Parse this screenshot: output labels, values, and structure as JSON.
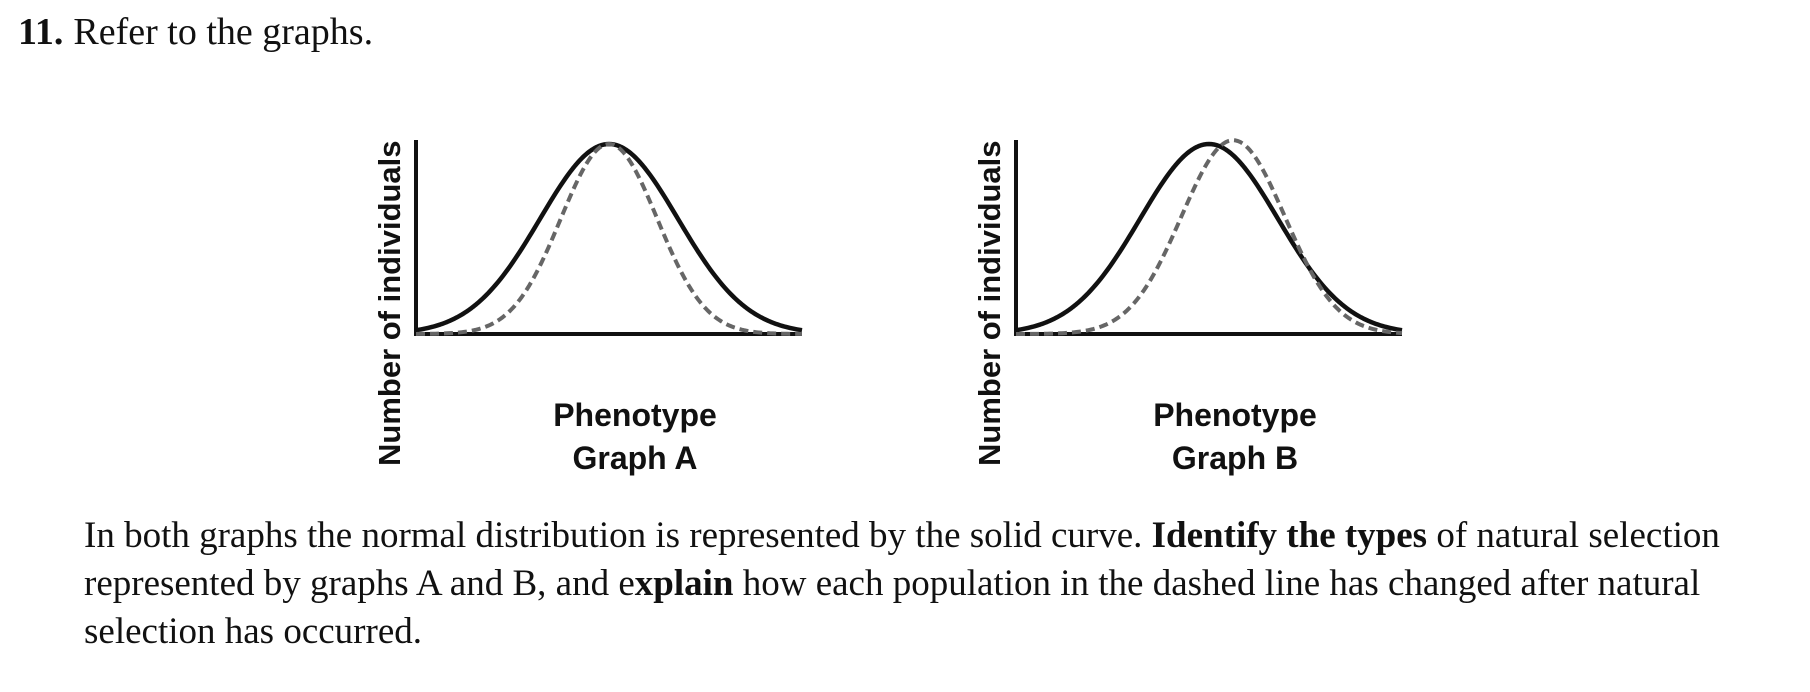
{
  "question": {
    "number": "11.",
    "prompt": "Refer to the graphs.",
    "body_1": "In both graphs the normal distribution is represented by the solid curve. ",
    "body_bold_1": "Identify the types",
    "body_2": " of natural selection represented by graphs A and B, and e",
    "body_bold_2": "xplain",
    "body_3": " how each population in the dashed line has changed after natural selection has occurred."
  },
  "graphs": [
    {
      "ylabel": "Number of individuals",
      "xlabel": "Phenotype",
      "title": "Graph A"
    },
    {
      "ylabel": "Number of individuals",
      "xlabel": "Phenotype",
      "title": "Graph B"
    }
  ],
  "chart_data": [
    {
      "type": "line",
      "title": "Graph A",
      "xlabel": "Phenotype",
      "ylabel": "Number of individuals",
      "axis_ticks": false,
      "series": [
        {
          "style": "solid",
          "shape": "normal",
          "mean": 0.0,
          "sd": 1.0,
          "peak": 1.0
        },
        {
          "style": "dashed",
          "shape": "normal",
          "mean": 0.0,
          "sd": 0.7,
          "peak": 1.0
        }
      ],
      "colors": {
        "solid": "#111111",
        "dashed": "#666666"
      }
    },
    {
      "type": "line",
      "title": "Graph B",
      "xlabel": "Phenotype",
      "ylabel": "Number of individuals",
      "axis_ticks": false,
      "series": [
        {
          "style": "solid",
          "shape": "normal",
          "mean": 0.0,
          "sd": 1.0,
          "peak": 1.0
        },
        {
          "style": "dashed",
          "shape": "normal",
          "mean": 0.35,
          "sd": 0.75,
          "peak": 1.02
        }
      ],
      "colors": {
        "solid": "#111111",
        "dashed": "#666666"
      }
    }
  ]
}
